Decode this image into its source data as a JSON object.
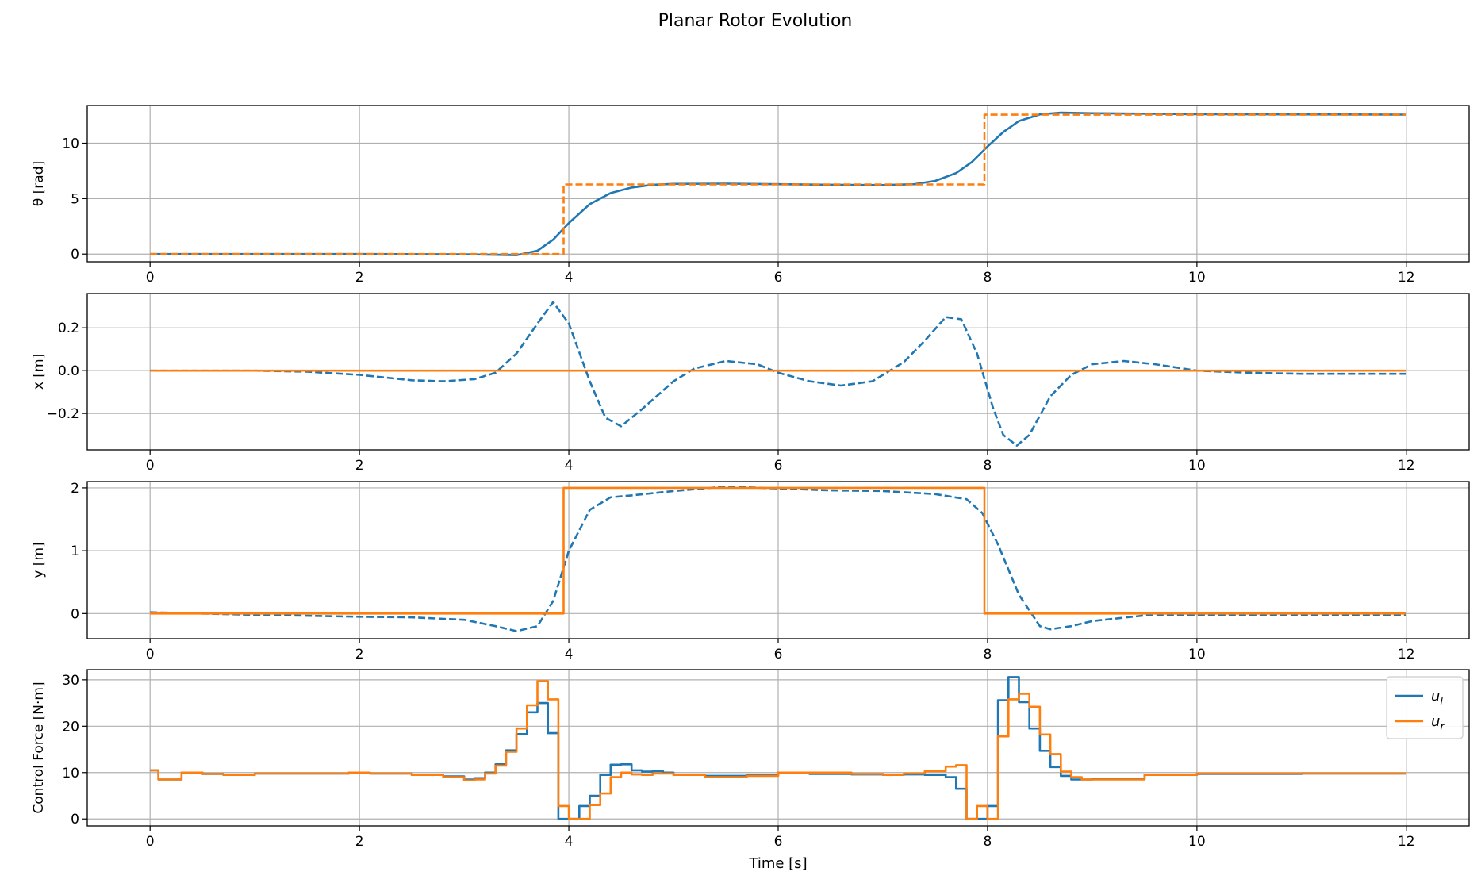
{
  "figure": {
    "title": "Planar Rotor Evolution",
    "xlabel": "Time [s]"
  },
  "colors": {
    "blue": "#1f77b4",
    "orange": "#ff7f0e",
    "grid": "#b0b0b0"
  },
  "chart_data": [
    {
      "type": "line",
      "title": "",
      "xlabel": "",
      "ylabel": "θ [rad]",
      "xlim": [
        -0.6,
        12.6
      ],
      "ylim": [
        -0.7,
        13.4
      ],
      "xticks": [
        0,
        2,
        4,
        6,
        8,
        10,
        12
      ],
      "yticks": [
        0,
        5,
        10
      ],
      "grid": true,
      "series": [
        {
          "color": "#1f77b4",
          "dash": "solid",
          "step": false,
          "x": [
            0,
            1,
            2,
            3,
            3.5,
            3.7,
            3.85,
            4.0,
            4.2,
            4.4,
            4.6,
            4.8,
            5.0,
            5.5,
            6.0,
            6.5,
            7.0,
            7.3,
            7.5,
            7.7,
            7.85,
            8.0,
            8.15,
            8.3,
            8.5,
            8.7,
            9.0,
            10,
            11,
            12
          ],
          "y": [
            0,
            0,
            0,
            -0.02,
            -0.1,
            0.3,
            1.3,
            2.8,
            4.5,
            5.5,
            6.0,
            6.25,
            6.33,
            6.35,
            6.3,
            6.25,
            6.22,
            6.3,
            6.6,
            7.3,
            8.3,
            9.7,
            11.0,
            12.0,
            12.6,
            12.75,
            12.7,
            12.62,
            12.6,
            12.58
          ]
        },
        {
          "color": "#ff7f0e",
          "dash": "dashed",
          "step": false,
          "x": [
            0,
            3.95,
            3.95,
            7.97,
            7.97,
            12
          ],
          "y": [
            0,
            0,
            6.28,
            6.28,
            12.57,
            12.57
          ]
        }
      ]
    },
    {
      "type": "line",
      "title": "",
      "xlabel": "",
      "ylabel": "x [m]",
      "xlim": [
        -0.6,
        12.6
      ],
      "ylim": [
        -0.37,
        0.36
      ],
      "xticks": [
        0,
        2,
        4,
        6,
        8,
        10,
        12
      ],
      "yticks": [
        -0.2,
        0.0,
        0.2
      ],
      "yticklabels": [
        "−0.2",
        "0.0",
        "0.2"
      ],
      "grid": true,
      "series": [
        {
          "color": "#1f77b4",
          "dash": "dashed",
          "step": false,
          "x": [
            0,
            1,
            1.5,
            2,
            2.5,
            2.8,
            3.1,
            3.3,
            3.5,
            3.7,
            3.85,
            4.0,
            4.2,
            4.35,
            4.5,
            4.7,
            5.0,
            5.2,
            5.5,
            5.8,
            6.0,
            6.3,
            6.6,
            6.9,
            7.2,
            7.4,
            7.6,
            7.75,
            7.9,
            8.05,
            8.15,
            8.28,
            8.4,
            8.6,
            8.8,
            9.0,
            9.3,
            9.6,
            10.0,
            10.5,
            11,
            12
          ],
          "y": [
            0,
            0.0,
            -0.005,
            -0.02,
            -0.045,
            -0.05,
            -0.04,
            -0.01,
            0.08,
            0.22,
            0.32,
            0.22,
            -0.05,
            -0.22,
            -0.26,
            -0.18,
            -0.05,
            0.01,
            0.045,
            0.03,
            -0.01,
            -0.05,
            -0.07,
            -0.05,
            0.04,
            0.14,
            0.25,
            0.24,
            0.08,
            -0.17,
            -0.3,
            -0.35,
            -0.3,
            -0.12,
            -0.02,
            0.03,
            0.045,
            0.03,
            0.0,
            -0.01,
            -0.015,
            -0.015
          ]
        },
        {
          "color": "#ff7f0e",
          "dash": "solid",
          "step": false,
          "x": [
            0,
            12
          ],
          "y": [
            0,
            0
          ]
        }
      ]
    },
    {
      "type": "line",
      "title": "",
      "xlabel": "",
      "ylabel": "y [m]",
      "xlim": [
        -0.6,
        12.6
      ],
      "ylim": [
        -0.4,
        2.1
      ],
      "xticks": [
        0,
        2,
        4,
        6,
        8,
        10,
        12
      ],
      "yticks": [
        0,
        1,
        2
      ],
      "grid": true,
      "series": [
        {
          "color": "#1f77b4",
          "dash": "dashed",
          "step": false,
          "x": [
            0,
            1,
            2,
            2.5,
            3.0,
            3.3,
            3.5,
            3.7,
            3.85,
            4.0,
            4.2,
            4.4,
            4.6,
            5.0,
            5.5,
            6.0,
            6.5,
            7.0,
            7.5,
            7.8,
            7.95,
            8.1,
            8.3,
            8.5,
            8.6,
            8.8,
            9.0,
            9.5,
            10,
            11,
            12
          ],
          "y": [
            0.02,
            -0.02,
            -0.05,
            -0.06,
            -0.1,
            -0.2,
            -0.28,
            -0.2,
            0.2,
            1.0,
            1.65,
            1.85,
            1.88,
            1.95,
            2.02,
            1.99,
            1.96,
            1.95,
            1.9,
            1.82,
            1.6,
            1.1,
            0.3,
            -0.2,
            -0.25,
            -0.2,
            -0.12,
            -0.03,
            -0.02,
            -0.02,
            -0.02
          ]
        },
        {
          "color": "#ff7f0e",
          "dash": "solid",
          "step": false,
          "x": [
            0,
            3.95,
            3.95,
            7.97,
            7.97,
            12
          ],
          "y": [
            0,
            0,
            2,
            2,
            0,
            0
          ]
        }
      ]
    },
    {
      "type": "line",
      "title": "",
      "xlabel": "Time [s]",
      "ylabel": "Control Force [N·m]",
      "xlim": [
        -0.6,
        12.6
      ],
      "ylim": [
        -1.5,
        32.2
      ],
      "xticks": [
        0,
        2,
        4,
        6,
        8,
        10,
        12
      ],
      "yticks": [
        0,
        10,
        20,
        30
      ],
      "grid": true,
      "legend": {
        "placement": "top-right",
        "entries": [
          {
            "label": "u",
            "sub": "l",
            "color": "#1f77b4"
          },
          {
            "label": "u",
            "sub": "r",
            "color": "#ff7f0e"
          }
        ]
      },
      "series": [
        {
          "color": "#1f77b4",
          "dash": "solid",
          "step": true,
          "x": [
            0,
            0.08,
            0.3,
            0.5,
            0.7,
            1.0,
            1.5,
            1.9,
            2.1,
            2.5,
            2.8,
            3.0,
            3.1,
            3.2,
            3.3,
            3.4,
            3.5,
            3.6,
            3.7,
            3.8,
            3.9,
            4.0,
            4.1,
            4.2,
            4.3,
            4.4,
            4.5,
            4.6,
            4.7,
            4.8,
            4.9,
            5.0,
            5.3,
            5.7,
            6.0,
            6.3,
            6.7,
            7.0,
            7.2,
            7.4,
            7.6,
            7.7,
            7.8,
            7.9,
            8.0,
            8.1,
            8.2,
            8.3,
            8.4,
            8.5,
            8.6,
            8.7,
            8.8,
            8.9,
            9.0,
            9.5,
            10,
            11,
            12
          ],
          "y": [
            10.5,
            8.5,
            10,
            9.7,
            9.5,
            9.8,
            9.8,
            10,
            9.8,
            9.5,
            9.2,
            8.5,
            8.8,
            10,
            11.8,
            14.8,
            18.3,
            23.0,
            25.0,
            18.5,
            0,
            0,
            2.8,
            5.0,
            9.5,
            11.7,
            11.8,
            10.5,
            10.2,
            10.3,
            10.0,
            9.5,
            9.3,
            9.5,
            10.0,
            9.7,
            9.6,
            9.5,
            9.6,
            9.5,
            9.0,
            6.5,
            0,
            0,
            2.8,
            25.6,
            30.6,
            25.2,
            19.5,
            14.7,
            11.2,
            9.3,
            8.5,
            8.5,
            8.7,
            9.5,
            9.7,
            9.8,
            9.8
          ]
        },
        {
          "color": "#ff7f0e",
          "dash": "solid",
          "step": true,
          "x": [
            0,
            0.08,
            0.3,
            0.5,
            0.7,
            1.0,
            1.5,
            1.9,
            2.1,
            2.5,
            2.8,
            3.0,
            3.1,
            3.2,
            3.3,
            3.4,
            3.5,
            3.6,
            3.7,
            3.8,
            3.9,
            4.0,
            4.1,
            4.2,
            4.3,
            4.4,
            4.5,
            4.6,
            4.7,
            4.8,
            4.9,
            5.0,
            5.3,
            5.7,
            6.0,
            6.3,
            6.7,
            7.0,
            7.2,
            7.4,
            7.6,
            7.7,
            7.8,
            7.9,
            8.0,
            8.1,
            8.2,
            8.3,
            8.4,
            8.5,
            8.6,
            8.7,
            8.8,
            8.9,
            9.0,
            9.5,
            10,
            11,
            12
          ],
          "y": [
            10.5,
            8.5,
            10,
            9.7,
            9.5,
            9.8,
            9.8,
            10,
            9.8,
            9.5,
            9.0,
            8.3,
            8.5,
            9.8,
            11.5,
            14.5,
            19.5,
            24.5,
            29.7,
            25.8,
            2.8,
            0,
            0,
            3.0,
            5.5,
            9.0,
            10.0,
            9.6,
            9.5,
            9.8,
            9.8,
            9.5,
            9.0,
            9.3,
            10.0,
            10.0,
            9.7,
            9.5,
            9.8,
            10.3,
            11.3,
            11.6,
            0,
            2.8,
            0,
            17.8,
            25.8,
            27.0,
            24.2,
            18.2,
            14.0,
            10.2,
            9.0,
            8.5,
            8.5,
            9.5,
            9.8,
            9.8,
            9.8
          ]
        }
      ]
    }
  ]
}
